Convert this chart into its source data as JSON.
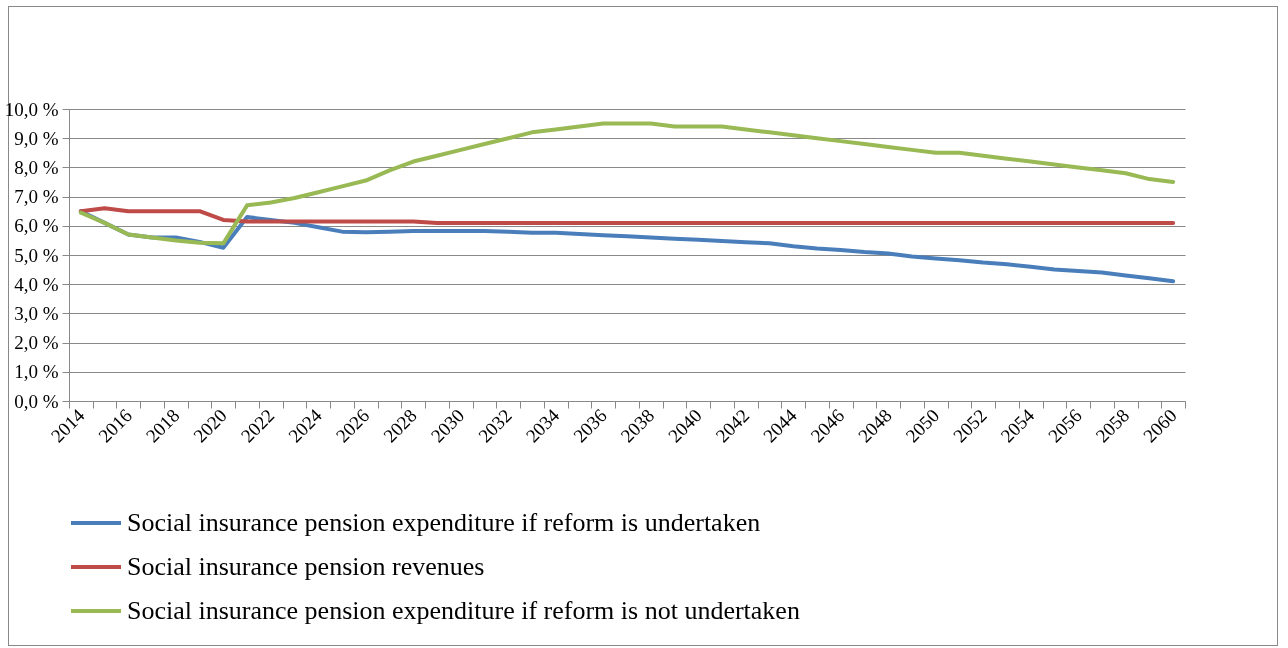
{
  "chart_data": {
    "type": "line",
    "categories": [
      "2014",
      null,
      "2016",
      null,
      "2018",
      null,
      "2020",
      null,
      "2022",
      null,
      "2024",
      null,
      "2026",
      null,
      "2028",
      null,
      "2030",
      null,
      "2032",
      null,
      "2034",
      null,
      "2036",
      null,
      "2038",
      null,
      "2040",
      null,
      "2042",
      null,
      "2044",
      null,
      "2046",
      null,
      "2048",
      null,
      "2050",
      null,
      "2052",
      null,
      "2054",
      null,
      "2056",
      null,
      "2058",
      null,
      "2060"
    ],
    "series": [
      {
        "name": "Social insurance pension expenditure if reform is undertaken",
        "color": "#4a7ebb",
        "values": [
          6.5,
          6.1,
          5.7,
          5.6,
          5.6,
          5.45,
          5.25,
          6.3,
          6.2,
          6.1,
          5.95,
          5.8,
          5.78,
          5.8,
          5.82,
          5.82,
          5.82,
          5.82,
          5.8,
          5.76,
          5.76,
          5.72,
          5.68,
          5.64,
          5.6,
          5.56,
          5.52,
          5.48,
          5.44,
          5.4,
          5.3,
          5.22,
          5.17,
          5.1,
          5.05,
          4.95,
          4.88,
          4.82,
          4.74,
          4.68,
          4.6,
          4.5,
          4.45,
          4.4,
          4.3,
          4.2,
          4.1
        ]
      },
      {
        "name": "Social insurance pension revenues",
        "color": "#be4b48",
        "values": [
          6.5,
          6.6,
          6.5,
          6.5,
          6.5,
          6.5,
          6.2,
          6.15,
          6.15,
          6.15,
          6.15,
          6.15,
          6.15,
          6.15,
          6.15,
          6.1,
          6.1,
          6.1,
          6.1,
          6.1,
          6.1,
          6.1,
          6.1,
          6.1,
          6.1,
          6.1,
          6.1,
          6.1,
          6.1,
          6.1,
          6.1,
          6.1,
          6.1,
          6.1,
          6.1,
          6.1,
          6.1,
          6.1,
          6.1,
          6.1,
          6.1,
          6.1,
          6.1,
          6.1,
          6.1,
          6.1,
          6.1
        ]
      },
      {
        "name": "Social insurance pension expenditure if reform is not undertaken",
        "color": "#98b954",
        "values": [
          6.45,
          6.1,
          5.7,
          5.6,
          5.5,
          5.42,
          5.4,
          6.7,
          6.8,
          6.95,
          7.15,
          7.35,
          7.55,
          7.9,
          8.2,
          8.4,
          8.6,
          8.8,
          9.0,
          9.2,
          9.3,
          9.4,
          9.5,
          9.5,
          9.5,
          9.4,
          9.4,
          9.4,
          9.3,
          9.2,
          9.1,
          9.0,
          8.9,
          8.8,
          8.7,
          8.6,
          8.5,
          8.5,
          8.4,
          8.3,
          8.2,
          8.1,
          8.0,
          7.9,
          7.8,
          7.6,
          7.5
        ]
      }
    ],
    "ylim": [
      0,
      10
    ],
    "yticks": [
      {
        "value": 0,
        "label": "0,0 %"
      },
      {
        "value": 1,
        "label": "1,0 %"
      },
      {
        "value": 2,
        "label": "2,0 %"
      },
      {
        "value": 3,
        "label": "3,0 %"
      },
      {
        "value": 4,
        "label": "4,0 %"
      },
      {
        "value": 5,
        "label": "5,0 %"
      },
      {
        "value": 6,
        "label": "6,0 %"
      },
      {
        "value": 7,
        "label": "7,0 %"
      },
      {
        "value": 8,
        "label": "8,0 %"
      },
      {
        "value": 9,
        "label": "9,0 %"
      },
      {
        "value": 10,
        "label": "10,0 %"
      }
    ],
    "grid": "y",
    "legend": "bottom",
    "marker": "none",
    "line_style": "solid"
  }
}
